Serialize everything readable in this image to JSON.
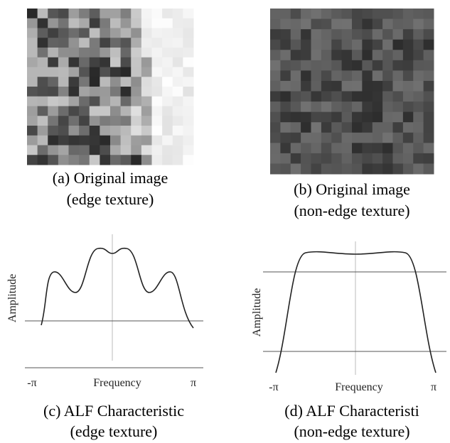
{
  "panels": [
    {
      "caption": [
        "(a) Original image",
        "(edge texture)"
      ]
    },
    {
      "caption": [
        "(b) Original image",
        "(non-edge texture)"
      ]
    },
    {
      "caption": [
        "(c) ALF Characteristic",
        "(edge texture)"
      ],
      "y_label": "Amplitude",
      "x_label": "Frequency",
      "x_left": "-π",
      "x_right": "π"
    },
    {
      "caption": [
        "(d) ALF Characteristi",
        "(non-edge texture)"
      ],
      "y_label": "Amplitude",
      "x_label": "Frequency",
      "x_left": "-π",
      "x_right": "π"
    }
  ]
}
